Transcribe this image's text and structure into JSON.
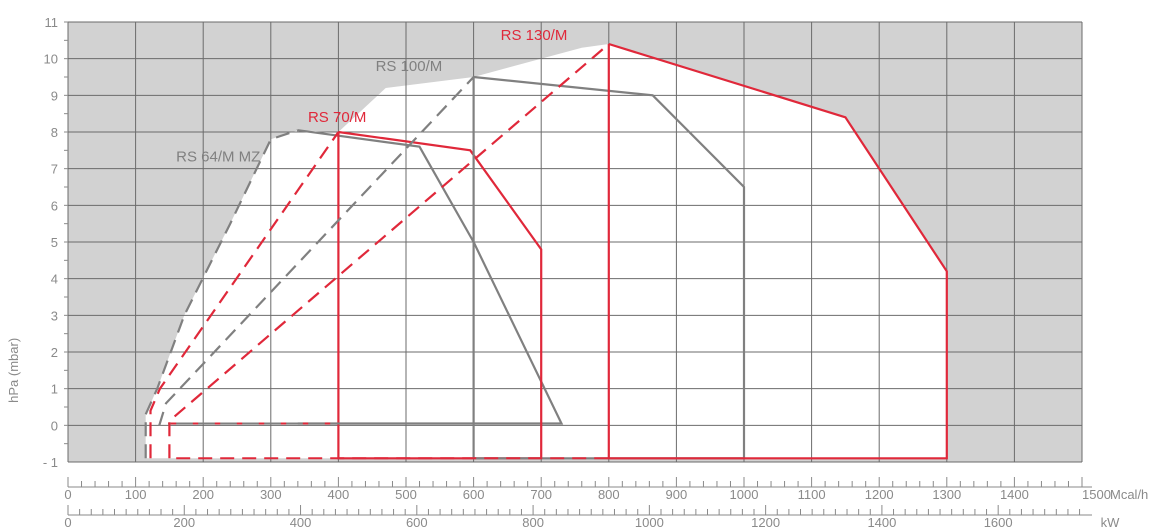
{
  "chart_data": {
    "type": "area",
    "xlabel_primary": "Mcal/h",
    "xlabel_secondary": "kW",
    "ylabel": "hPa (mbar)",
    "xlim": [
      0,
      1500
    ],
    "ylim": [
      -1,
      11
    ],
    "x_ticks": [
      "0",
      "100",
      "200",
      "300",
      "400",
      "500",
      "600",
      "700",
      "800",
      "900",
      "1000",
      "1100",
      "1200",
      "1300",
      "1400",
      "1500"
    ],
    "y_ticks": [
      "11",
      "10",
      "9",
      "8",
      "7",
      "6",
      "5",
      "4",
      "3",
      "2",
      "1",
      "0",
      "- 1"
    ],
    "kw_ticks": [
      "0",
      "200",
      "400",
      "600",
      "800",
      "1000",
      "1200",
      "1400",
      "1600"
    ],
    "kw_values": [
      0,
      200,
      400,
      600,
      800,
      1000,
      1200,
      1400,
      1600
    ],
    "colors": {
      "plot_bg": "#d2d2d2",
      "grid": "#6b6b6b",
      "axis_text": "#8a8a8a",
      "gray_series": "#808080",
      "red_series": "#e0283a"
    },
    "series": [
      {
        "name": "RS 64/M MZ",
        "color": "#808080",
        "ignition_x": 132,
        "min_output_x": 340,
        "dashed": [
          [
            115,
            -0.9
          ],
          [
            115,
            0.3
          ],
          [
            132,
            1.0
          ],
          [
            172,
            3.0
          ],
          [
            240,
            5.5
          ],
          [
            300,
            7.8
          ],
          [
            340,
            8.05
          ]
        ],
        "solid": [
          [
            340,
            8.05
          ],
          [
            520,
            7.6
          ],
          [
            600,
            5.0
          ],
          [
            730,
            0.05
          ],
          [
            340,
            0.05
          ]
        ],
        "ignition_dashed": [
          [
            148,
            0.05
          ],
          [
            340,
            0.05
          ]
        ]
      },
      {
        "name": "RS 70/M",
        "color": "#e0283a",
        "ignition_x": 136,
        "min_output_x": 400,
        "dashed": [
          [
            122,
            -0.9
          ],
          [
            122,
            0.4
          ],
          [
            136,
            1.0
          ],
          [
            400,
            8.0
          ]
        ],
        "solid": [
          [
            400,
            8.0
          ],
          [
            595,
            7.5
          ],
          [
            700,
            4.8
          ],
          [
            700,
            -0.9
          ],
          [
            400,
            -0.9
          ],
          [
            400,
            8.0
          ]
        ],
        "ignition_dashed": [
          [
            152,
            0.05
          ],
          [
            400,
            0.05
          ]
        ]
      },
      {
        "name": "RS 100/M",
        "color": "#808080",
        "ignition_x": 145,
        "min_output_x": 600,
        "dashed": [
          [
            135,
            0.0
          ],
          [
            145,
            0.6
          ],
          [
            600,
            9.5
          ]
        ],
        "solid": [
          [
            600,
            9.5
          ],
          [
            865,
            9.0
          ],
          [
            1000,
            6.5
          ],
          [
            1000,
            -0.9
          ],
          [
            600,
            -0.9
          ],
          [
            600,
            9.5
          ]
        ],
        "ignition_dashed": [
          [
            160,
            0.05
          ],
          [
            600,
            0.05
          ]
        ]
      },
      {
        "name": "RS 130/M",
        "color": "#e0283a",
        "ignition_x": 155,
        "min_output_x": 800,
        "dashed": [
          [
            150,
            -0.9
          ],
          [
            150,
            0.1
          ],
          [
            155,
            0.2
          ],
          [
            800,
            10.4
          ]
        ],
        "solid": [
          [
            800,
            10.4
          ],
          [
            1150,
            8.4
          ],
          [
            1300,
            4.2
          ],
          [
            1300,
            -0.9
          ],
          [
            800,
            -0.9
          ],
          [
            800,
            10.4
          ]
        ],
        "ignition_dashed": [
          [
            160,
            -0.9
          ],
          [
            800,
            -0.9
          ]
        ]
      }
    ]
  }
}
